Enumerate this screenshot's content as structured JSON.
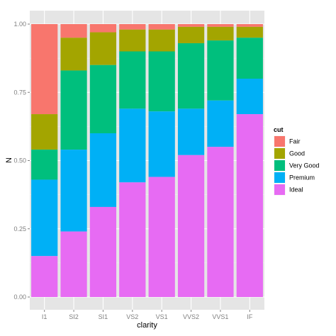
{
  "chart_data": {
    "type": "bar",
    "stacked": "fill",
    "xlabel": "clarity",
    "ylabel": "N",
    "ylim": [
      0,
      1
    ],
    "yticks": [
      "0.00",
      "0.25",
      "0.50",
      "0.75",
      "1.00"
    ],
    "ytick_values": [
      0,
      0.25,
      0.5,
      0.75,
      1.0
    ],
    "grid": true,
    "legend_position": "right",
    "legend_title": "cut",
    "categories": [
      "I1",
      "SI2",
      "SI1",
      "VS2",
      "VS1",
      "VVS2",
      "VVS1",
      "IF"
    ],
    "series": [
      {
        "name": "Fair",
        "color": "#F8766D",
        "values": [
          0.33,
          0.05,
          0.03,
          0.02,
          0.02,
          0.01,
          0.01,
          0.01
        ]
      },
      {
        "name": "Good",
        "color": "#A3A500",
        "values": [
          0.13,
          0.12,
          0.12,
          0.08,
          0.08,
          0.06,
          0.05,
          0.04
        ]
      },
      {
        "name": "Very Good",
        "color": "#00BF7D",
        "values": [
          0.11,
          0.29,
          0.25,
          0.21,
          0.22,
          0.24,
          0.22,
          0.15
        ]
      },
      {
        "name": "Premium",
        "color": "#00B0F6",
        "values": [
          0.28,
          0.3,
          0.27,
          0.27,
          0.24,
          0.17,
          0.17,
          0.13
        ]
      },
      {
        "name": "Ideal",
        "color": "#E76BF3",
        "values": [
          0.15,
          0.24,
          0.33,
          0.42,
          0.44,
          0.52,
          0.55,
          0.67
        ]
      }
    ]
  }
}
